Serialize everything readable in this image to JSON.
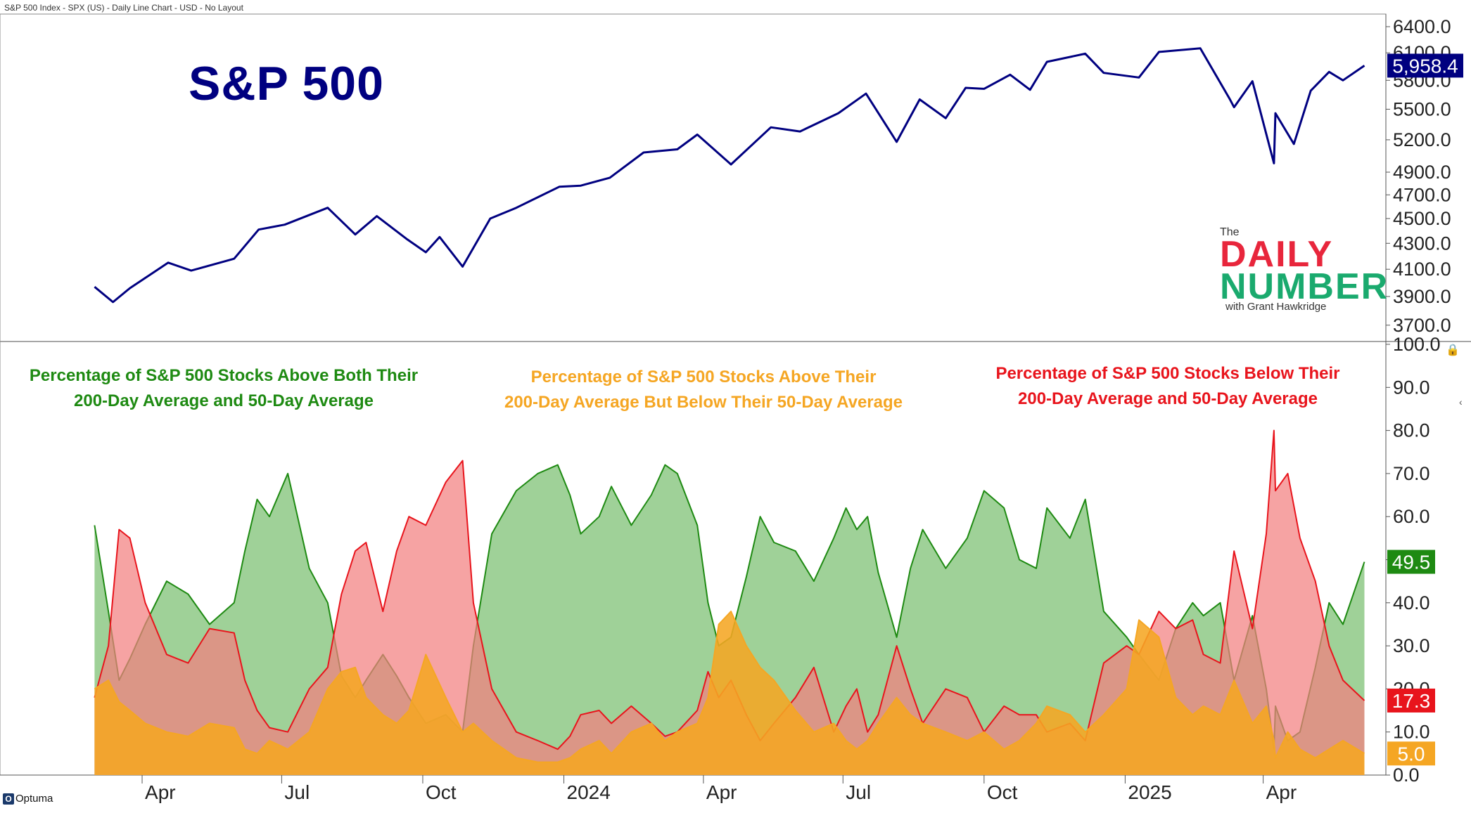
{
  "header": "S&P 500 Index - SPX (US) - Daily Line Chart - USD - No Layout",
  "title": "S&P 500",
  "panel_titles": {
    "green": [
      "Percentage of S&P 500 Stocks Above Both Their",
      "200-Day Average and 50-Day Average"
    ],
    "orange": [
      "Percentage of S&P 500 Stocks Above Their",
      "200-Day Average But Below Their 50-Day Average"
    ],
    "red": [
      "Percentage of S&P 500 Stocks Below Their",
      "200-Day Average and 50-Day Average"
    ]
  },
  "logo": {
    "the": "The",
    "daily": "DAILY",
    "number": "NUMBER",
    "with": "with Grant Hawkridge"
  },
  "brand": "Optuma",
  "colors": {
    "navy": "#000080",
    "green": "#1e8a12",
    "red": "#e8141c",
    "orange": "#f5a623"
  },
  "chart_data": [
    {
      "type": "line",
      "name": "S&P 500",
      "x_axis_labels": [
        "Apr",
        "Jul",
        "Oct",
        "2024",
        "Apr",
        "Jul",
        "Oct",
        "2025",
        "Apr"
      ],
      "y_ticks": [
        3700,
        3900,
        4100,
        4300,
        4500,
        4700,
        4900,
        5200,
        5500,
        5800,
        6100,
        6400
      ],
      "last_value_label": "5,958.4",
      "ylim": [
        3600,
        6550
      ],
      "log_scale": true,
      "x": [
        "2023-03-01",
        "2023-03-13",
        "2023-03-24",
        "2023-04-18",
        "2023-05-03",
        "2023-05-31",
        "2023-06-16",
        "2023-07-03",
        "2023-07-31",
        "2023-08-18",
        "2023-09-01",
        "2023-09-21",
        "2023-10-03",
        "2023-10-12",
        "2023-10-27",
        "2023-11-14",
        "2023-12-01",
        "2023-12-29",
        "2024-01-12",
        "2024-01-31",
        "2024-02-22",
        "2024-03-15",
        "2024-03-28",
        "2024-04-19",
        "2024-05-15",
        "2024-06-03",
        "2024-06-28",
        "2024-07-16",
        "2024-08-05",
        "2024-08-20",
        "2024-09-06",
        "2024-09-19",
        "2024-10-01",
        "2024-10-18",
        "2024-10-31",
        "2024-11-11",
        "2024-12-06",
        "2024-12-18",
        "2025-01-10",
        "2025-01-23",
        "2025-02-19",
        "2025-03-10",
        "2025-03-13",
        "2025-03-25",
        "2025-04-08",
        "2025-04-09",
        "2025-04-21",
        "2025-05-02",
        "2025-05-14",
        "2025-05-23",
        "2025-06-06"
      ],
      "y": [
        3970,
        3860,
        3960,
        4150,
        4090,
        4180,
        4410,
        4450,
        4590,
        4370,
        4520,
        4330,
        4230,
        4350,
        4120,
        4500,
        4590,
        4770,
        4780,
        4850,
        5080,
        5110,
        5250,
        4970,
        5320,
        5280,
        5460,
        5660,
        5180,
        5600,
        5410,
        5720,
        5710,
        5860,
        5700,
        6000,
        6090,
        5880,
        5830,
        6110,
        6150,
        5610,
        5520,
        5790,
        4980,
        5460,
        5160,
        5690,
        5890,
        5800,
        5958
      ],
      "gridlines": false
    },
    {
      "type": "area",
      "y_ticks": [
        0,
        10,
        20,
        30,
        40,
        50,
        60,
        70,
        80,
        90,
        100
      ],
      "ylim": [
        0,
        100
      ],
      "x": [
        "2023-03-01",
        "2023-03-10",
        "2023-03-17",
        "2023-03-24",
        "2023-04-03",
        "2023-04-17",
        "2023-05-01",
        "2023-05-15",
        "2023-05-31",
        "2023-06-07",
        "2023-06-15",
        "2023-06-23",
        "2023-07-05",
        "2023-07-19",
        "2023-07-31",
        "2023-08-09",
        "2023-08-18",
        "2023-08-25",
        "2023-09-05",
        "2023-09-14",
        "2023-09-22",
        "2023-10-03",
        "2023-10-16",
        "2023-10-27",
        "2023-11-03",
        "2023-11-15",
        "2023-12-01",
        "2023-12-15",
        "2023-12-28",
        "2024-01-05",
        "2024-01-12",
        "2024-01-24",
        "2024-02-01",
        "2024-02-14",
        "2024-02-27",
        "2024-03-07",
        "2024-03-15",
        "2024-03-28",
        "2024-04-04",
        "2024-04-11",
        "2024-04-19",
        "2024-04-29",
        "2024-05-08",
        "2024-05-17",
        "2024-05-31",
        "2024-06-12",
        "2024-06-25",
        "2024-07-03",
        "2024-07-10",
        "2024-07-17",
        "2024-07-24",
        "2024-08-05",
        "2024-08-14",
        "2024-08-22",
        "2024-09-06",
        "2024-09-20",
        "2024-10-01",
        "2024-10-14",
        "2024-10-24",
        "2024-11-04",
        "2024-11-11",
        "2024-11-26",
        "2024-12-06",
        "2024-12-18",
        "2025-01-02",
        "2025-01-10",
        "2025-01-23",
        "2025-02-03",
        "2025-02-14",
        "2025-02-21",
        "2025-03-04",
        "2025-03-13",
        "2025-03-25",
        "2025-04-03",
        "2025-04-08",
        "2025-04-09",
        "2025-04-17",
        "2025-04-25",
        "2025-05-05",
        "2025-05-14",
        "2025-05-23",
        "2025-06-06"
      ],
      "series": [
        {
          "name": "Percentage of S&P 500 Stocks Above Both Their 200-Day Average and 50-Day Average",
          "color": "#1e8a12",
          "last_value_label": "49.5",
          "values": [
            58,
            38,
            22,
            27,
            35,
            45,
            42,
            35,
            40,
            52,
            64,
            60,
            70,
            48,
            40,
            23,
            18,
            22,
            28,
            23,
            18,
            12,
            14,
            10,
            30,
            56,
            66,
            70,
            72,
            65,
            56,
            60,
            67,
            58,
            65,
            72,
            70,
            58,
            40,
            30,
            32,
            46,
            60,
            54,
            52,
            45,
            55,
            62,
            57,
            60,
            47,
            32,
            48,
            57,
            48,
            55,
            66,
            62,
            50,
            48,
            62,
            55,
            64,
            38,
            32,
            28,
            22,
            34,
            40,
            37,
            40,
            22,
            37,
            20,
            6,
            16,
            8,
            10,
            25,
            40,
            35,
            49.5
          ]
        },
        {
          "name": "Percentage of S&P 500 Stocks Above Their 200-Day Average But Below Their 50-Day Average",
          "color": "#f5a623",
          "last_value_label": "5.0",
          "values": [
            20,
            22,
            17,
            15,
            12,
            10,
            9,
            12,
            11,
            6,
            5,
            8,
            6,
            10,
            20,
            24,
            25,
            18,
            14,
            12,
            15,
            28,
            18,
            10,
            12,
            8,
            4,
            3,
            3,
            4,
            6,
            8,
            5,
            10,
            12,
            8,
            10,
            12,
            18,
            35,
            38,
            30,
            25,
            22,
            15,
            10,
            12,
            8,
            6,
            8,
            12,
            18,
            14,
            12,
            10,
            8,
            10,
            6,
            8,
            12,
            16,
            14,
            10,
            14,
            20,
            36,
            32,
            18,
            14,
            16,
            14,
            22,
            12,
            16,
            8,
            4,
            10,
            6,
            4,
            6,
            8,
            5
          ]
        },
        {
          "name": "Percentage of S&P 500 Stocks Below Their 200-Day Average and 50-Day Average",
          "color": "#e8141c",
          "last_value_label": "17.3",
          "values": [
            18,
            30,
            57,
            55,
            40,
            28,
            26,
            34,
            33,
            22,
            15,
            11,
            10,
            20,
            25,
            42,
            52,
            54,
            38,
            52,
            60,
            58,
            68,
            73,
            40,
            20,
            10,
            8,
            6,
            9,
            14,
            15,
            12,
            16,
            12,
            9,
            10,
            15,
            24,
            18,
            22,
            14,
            8,
            12,
            18,
            25,
            10,
            16,
            20,
            10,
            14,
            30,
            20,
            12,
            20,
            18,
            10,
            16,
            14,
            14,
            10,
            12,
            8,
            26,
            30,
            28,
            38,
            34,
            36,
            28,
            26,
            52,
            34,
            56,
            80,
            66,
            70,
            55,
            45,
            30,
            22,
            17.3
          ]
        }
      ]
    }
  ]
}
